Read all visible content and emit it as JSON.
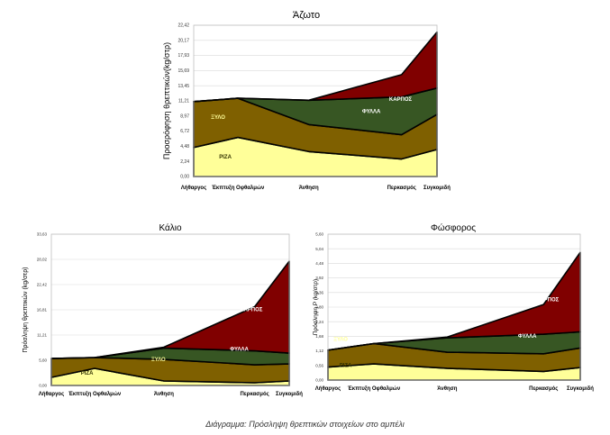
{
  "caption": "Διάγραμμα: Πρόσληψη θρεπτικών στοιχείων στο αμπέλι",
  "colors": {
    "riza": "#ffff99",
    "xylo": "#7f6000",
    "fylla": "#375623",
    "karpos": "#800000",
    "outline": "#000000"
  },
  "chart_data": [
    {
      "type": "area",
      "title": "Άζωτο",
      "ylabel": "Προσρόφηση θρεπτικών(kg/στρ)",
      "xlabel": "",
      "categories": [
        "Λήθαργος",
        "Έκπτυξη Οφθαλμών",
        "Άνθηση",
        "Περκασμός",
        "Συγκομιδή"
      ],
      "x": [
        0,
        1,
        2.6,
        4.7,
        5.5
      ],
      "yticks": [
        "0,00",
        "2,24",
        "4,48",
        "6,72",
        "8,97",
        "11,21",
        "13,45",
        "15,69",
        "17,93",
        "20,17",
        "22,42"
      ],
      "ylim": [
        0,
        22.42
      ],
      "grid": true,
      "legend": "inline labels",
      "series": [
        {
          "name": "ΡΙΖΑ",
          "values": [
            4.3,
            5.8,
            3.7,
            2.6,
            4.0
          ]
        },
        {
          "name": "ΞΥΛΟ",
          "values": [
            6.8,
            5.8,
            4.0,
            3.6,
            5.2
          ]
        },
        {
          "name": "ΦΥΛΛΑ",
          "values": [
            0.0,
            0.0,
            3.6,
            5.6,
            3.9
          ]
        },
        {
          "name": "ΚΑΡΠΟΣ",
          "values": [
            0.0,
            0.0,
            0.0,
            3.3,
            8.3
          ]
        }
      ]
    },
    {
      "type": "area",
      "title": "Κάλιο",
      "ylabel": "Πρόσληψη θρεπτικών (kg/στρ)",
      "xlabel": "",
      "categories": [
        "Λήθαργος",
        "Έκπτυξη Οφθαλμών",
        "Άνθηση",
        "Περκασμός",
        "Συγκομιδή"
      ],
      "x": [
        0,
        1,
        2.6,
        4.7,
        5.5
      ],
      "yticks": [
        "0,00",
        "5,60",
        "11,21",
        "16,81",
        "22,42",
        "28,02",
        "33,63"
      ],
      "ylim": [
        0,
        33.63
      ],
      "grid": true,
      "legend": "inline labels",
      "series": [
        {
          "name": "ΡΙΖΑ",
          "values": [
            1.8,
            3.8,
            1.0,
            0.6,
            1.0
          ]
        },
        {
          "name": "ΞΥΛΟ",
          "values": [
            4.2,
            2.4,
            4.8,
            4.0,
            3.8
          ]
        },
        {
          "name": "ΦΥΛΛΑ",
          "values": [
            0.0,
            0.0,
            2.5,
            3.1,
            2.4
          ]
        },
        {
          "name": "ΚΑΡΠΟΣ",
          "values": [
            0.0,
            0.0,
            0.2,
            9.8,
            20.4
          ]
        }
      ]
    },
    {
      "type": "area",
      "title": "Φώσφορος",
      "ylabel": "Πρόσληψη P (kg/στρ)",
      "xlabel": "",
      "categories": [
        "Λήθαργος",
        "Έκπτυξη Οφθαλμών",
        "Άνθηση",
        "Περκασμός",
        "Συγκομιδή"
      ],
      "x": [
        0,
        1,
        2.6,
        4.7,
        5.5
      ],
      "yticks": [
        "0,00",
        "0,56",
        "1,12",
        "1,68",
        "2,24",
        "2,80",
        "3,36",
        "3,92",
        "4,48",
        "5,04",
        "5,60"
      ],
      "ylim": [
        0,
        5.6
      ],
      "grid": true,
      "legend": "inline labels",
      "series": [
        {
          "name": "ΡΙΖΑ",
          "values": [
            0.5,
            0.62,
            0.45,
            0.33,
            0.48
          ]
        },
        {
          "name": "ΞΥΛΟ",
          "values": [
            0.65,
            0.78,
            0.62,
            0.68,
            0.75
          ]
        },
        {
          "name": "ΦΥΛΛΑ",
          "values": [
            0.0,
            0.0,
            0.55,
            0.75,
            0.62
          ]
        },
        {
          "name": "ΚΑΡΠΟΣ",
          "values": [
            0.0,
            0.0,
            0.03,
            1.14,
            3.05
          ]
        }
      ]
    }
  ]
}
